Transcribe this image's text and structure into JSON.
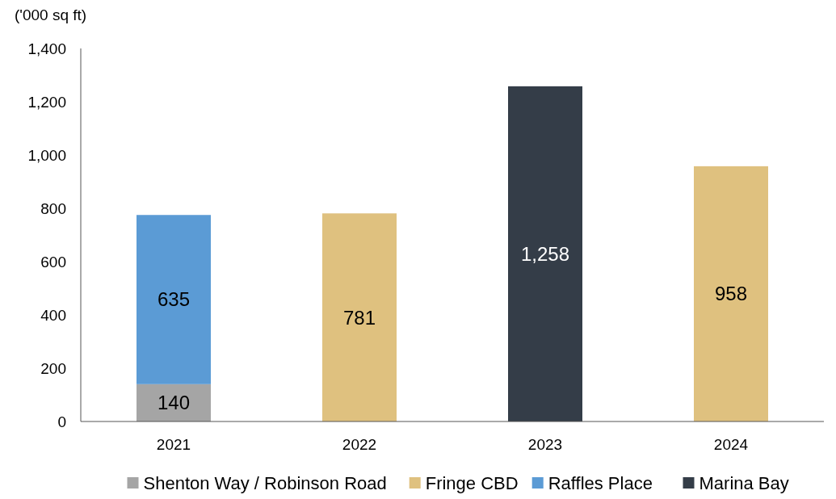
{
  "chart_data": {
    "type": "bar",
    "stacked": true,
    "ylabel": "('000 sq ft)",
    "categories": [
      "2021",
      "2022",
      "2023",
      "2024"
    ],
    "series": [
      {
        "name": "Shenton Way / Robinson Road",
        "color": "#a5a5a5",
        "values": [
          140,
          null,
          null,
          null
        ],
        "value_labels": [
          "140",
          null,
          null,
          null
        ]
      },
      {
        "name": "Fringe CBD",
        "color": "#dfc17f",
        "values": [
          null,
          781,
          null,
          958
        ],
        "value_labels": [
          null,
          "781",
          null,
          "958"
        ]
      },
      {
        "name": "Raffles Place",
        "color": "#5b9bd5",
        "values": [
          635,
          null,
          null,
          null
        ],
        "value_labels": [
          "635",
          null,
          null,
          null
        ]
      },
      {
        "name": "Marina Bay",
        "color": "#343d48",
        "values": [
          null,
          null,
          1258,
          null
        ],
        "value_labels": [
          null,
          null,
          "1,258",
          null
        ]
      }
    ],
    "ylim": [
      0,
      1400
    ],
    "yticks": [
      0,
      200,
      400,
      600,
      800,
      {
        "value": 1000,
        "label": "1,000"
      },
      {
        "value": 1200,
        "label": "1,200"
      },
      {
        "value": 1400,
        "label": "1,400"
      }
    ],
    "grid": false,
    "legend": "bottom"
  }
}
